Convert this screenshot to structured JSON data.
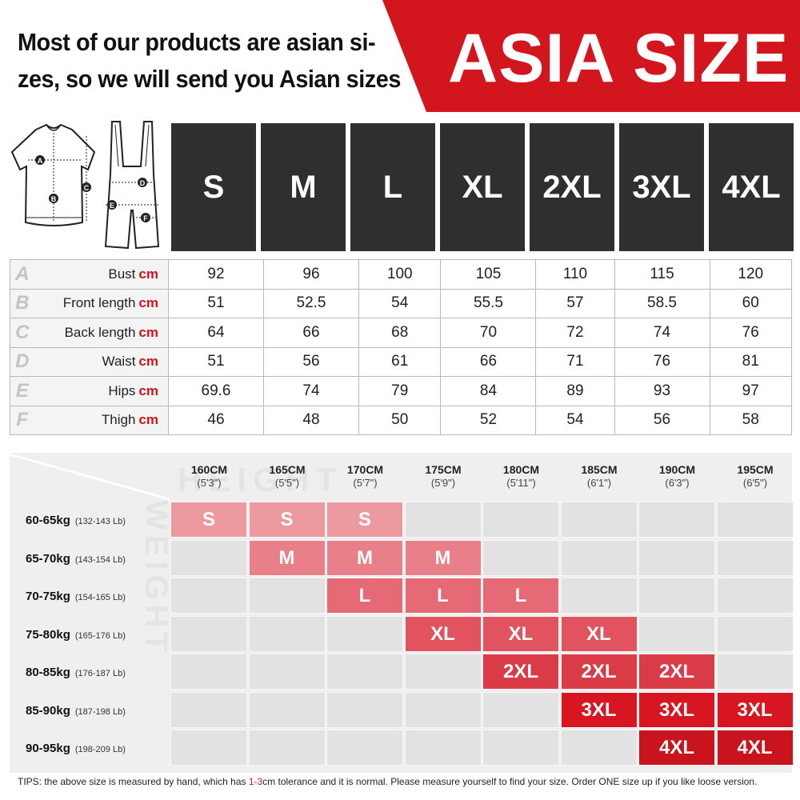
{
  "header": {
    "line1": "Most of our products are asian si-",
    "line2": "zes, so we will send you Asian sizes",
    "banner": "ASIA SIZE",
    "banner_color": "#d3151d"
  },
  "sizes": [
    "S",
    "M",
    "L",
    "XL",
    "2XL",
    "3XL",
    "4XL"
  ],
  "illustrations": {
    "jersey_markers": [
      "A",
      "B",
      "C"
    ],
    "bib_markers": [
      "D",
      "E",
      "F"
    ]
  },
  "measurements": {
    "unit": "cm",
    "rows": [
      {
        "letter": "A",
        "label": "Bust",
        "values": [
          "92",
          "96",
          "100",
          "105",
          "110",
          "115",
          "120"
        ]
      },
      {
        "letter": "B",
        "label": "Front length",
        "values": [
          "51",
          "52.5",
          "54",
          "55.5",
          "57",
          "58.5",
          "60"
        ]
      },
      {
        "letter": "C",
        "label": "Back length",
        "values": [
          "64",
          "66",
          "68",
          "70",
          "72",
          "74",
          "76"
        ]
      },
      {
        "letter": "D",
        "label": "Waist",
        "values": [
          "51",
          "56",
          "61",
          "66",
          "71",
          "76",
          "81"
        ]
      },
      {
        "letter": "E",
        "label": "Hips",
        "values": [
          "69.6",
          "74",
          "79",
          "84",
          "89",
          "93",
          "97"
        ]
      },
      {
        "letter": "F",
        "label": "Thigh",
        "values": [
          "46",
          "48",
          "50",
          "52",
          "54",
          "56",
          "58"
        ]
      }
    ]
  },
  "height_weight": {
    "height_watermark": "HEIGHT",
    "weight_watermark": "WEIGHT",
    "heights": [
      {
        "cm": "160CM",
        "ft": "(5'3\")"
      },
      {
        "cm": "165CM",
        "ft": "(5'5\")"
      },
      {
        "cm": "170CM",
        "ft": "(5'7\")"
      },
      {
        "cm": "175CM",
        "ft": "(5'9\")"
      },
      {
        "cm": "180CM",
        "ft": "(5'11\")"
      },
      {
        "cm": "185CM",
        "ft": "(6'1\")"
      },
      {
        "cm": "190CM",
        "ft": "(6'3\")"
      },
      {
        "cm": "195CM",
        "ft": "(6'5\")"
      }
    ],
    "weights": [
      {
        "kg": "60-65kg",
        "lb": "(132-143 Lb)"
      },
      {
        "kg": "65-70kg",
        "lb": "(143-154 Lb)"
      },
      {
        "kg": "70-75kg",
        "lb": "(154-165 Lb)"
      },
      {
        "kg": "75-80kg",
        "lb": "(165-176 Lb)"
      },
      {
        "kg": "80-85kg",
        "lb": "(176-187 Lb)"
      },
      {
        "kg": "85-90kg",
        "lb": "(187-198 Lb)"
      },
      {
        "kg": "90-95kg",
        "lb": "(198-209 Lb)"
      }
    ],
    "grid": [
      [
        "S",
        "S",
        "S",
        "",
        "",
        "",
        "",
        ""
      ],
      [
        "",
        "M",
        "M",
        "M",
        "",
        "",
        "",
        ""
      ],
      [
        "",
        "",
        "L",
        "L",
        "L",
        "",
        "",
        ""
      ],
      [
        "",
        "",
        "",
        "XL",
        "XL",
        "XL",
        "",
        ""
      ],
      [
        "",
        "",
        "",
        "",
        "2XL",
        "2XL",
        "2XL",
        ""
      ],
      [
        "",
        "",
        "",
        "",
        "",
        "3XL",
        "3XL",
        "3XL"
      ],
      [
        "",
        "",
        "",
        "",
        "",
        "",
        "4XL",
        "4XL"
      ]
    ],
    "size_colors": {
      "S": "#ec9aa0",
      "M": "#e98089",
      "L": "#e56a75",
      "XL": "#e0535f",
      "2XL": "#db3a47",
      "3XL": "#d81622",
      "4XL": "#c9141d"
    },
    "empty_cell_color": "#e2e2e2"
  },
  "tips": {
    "before": "TIPS:  the above size is measured by hand, which has ",
    "highlight": "1-3",
    "after": "cm tolerance and it is normal. Please measure yourself to find your size. Order ONE size up if you like loose version."
  }
}
